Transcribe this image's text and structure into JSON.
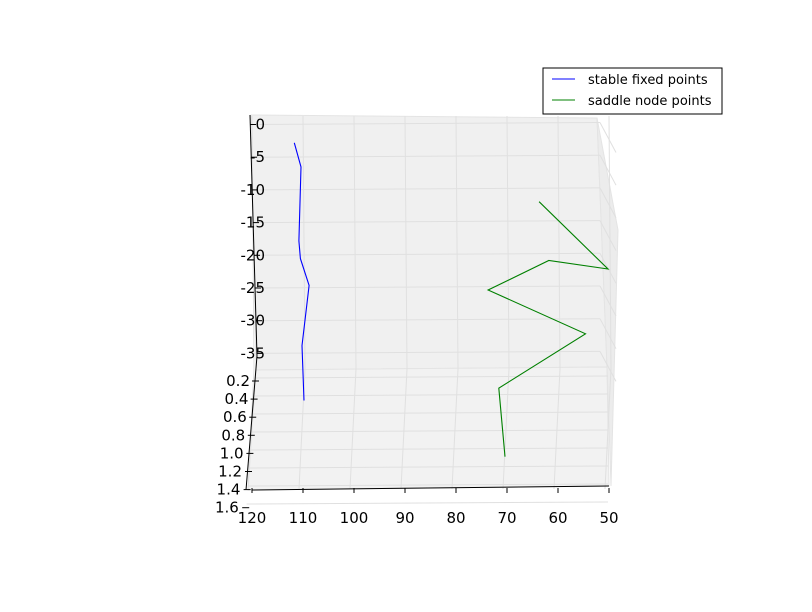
{
  "chart_data": {
    "type": "line",
    "projection": "3d",
    "grid": true,
    "legend_placement": "upper-right",
    "x_axis": {
      "ticks": [
        "120",
        "110",
        "100",
        "90",
        "80",
        "70",
        "60",
        "50"
      ],
      "range": [
        120,
        50
      ]
    },
    "z_axis": {
      "ticks": [
        "0",
        "-5",
        "-10",
        "-15",
        "-20",
        "-25",
        "-30",
        "-35"
      ],
      "range": [
        0,
        -37
      ]
    },
    "y_axis": {
      "ticks": [
        "0.2",
        "0.4",
        "0.6",
        "0.8",
        "1.0",
        "1.2",
        "1.4",
        "1.6"
      ],
      "range": [
        0.2,
        1.6
      ]
    },
    "series": [
      {
        "name": "stable fixed points",
        "color": "#0000ff",
        "points": [
          {
            "x": 111.7,
            "z": -2.8
          },
          {
            "x": 110.4,
            "z": -6.5
          },
          {
            "x": 110.8,
            "z": -17.8
          },
          {
            "x": 110.5,
            "z": -20.5
          },
          {
            "x": 108.8,
            "z": -24.6
          },
          {
            "x": 110.2,
            "z": -33.8
          },
          {
            "x": 109.8,
            "z": -42.2
          }
        ]
      },
      {
        "name": "saddle node points",
        "color": "#008000",
        "points": [
          {
            "x": 63.7,
            "z": -11.8
          },
          {
            "x": 50.2,
            "z": -22.1
          },
          {
            "x": 61.8,
            "z": -20.8
          },
          {
            "x": 73.7,
            "z": -25.3
          },
          {
            "x": 54.6,
            "z": -32.0
          },
          {
            "x": 71.6,
            "z": -40.3
          },
          {
            "x": 70.4,
            "z": -50.8
          }
        ]
      }
    ]
  }
}
